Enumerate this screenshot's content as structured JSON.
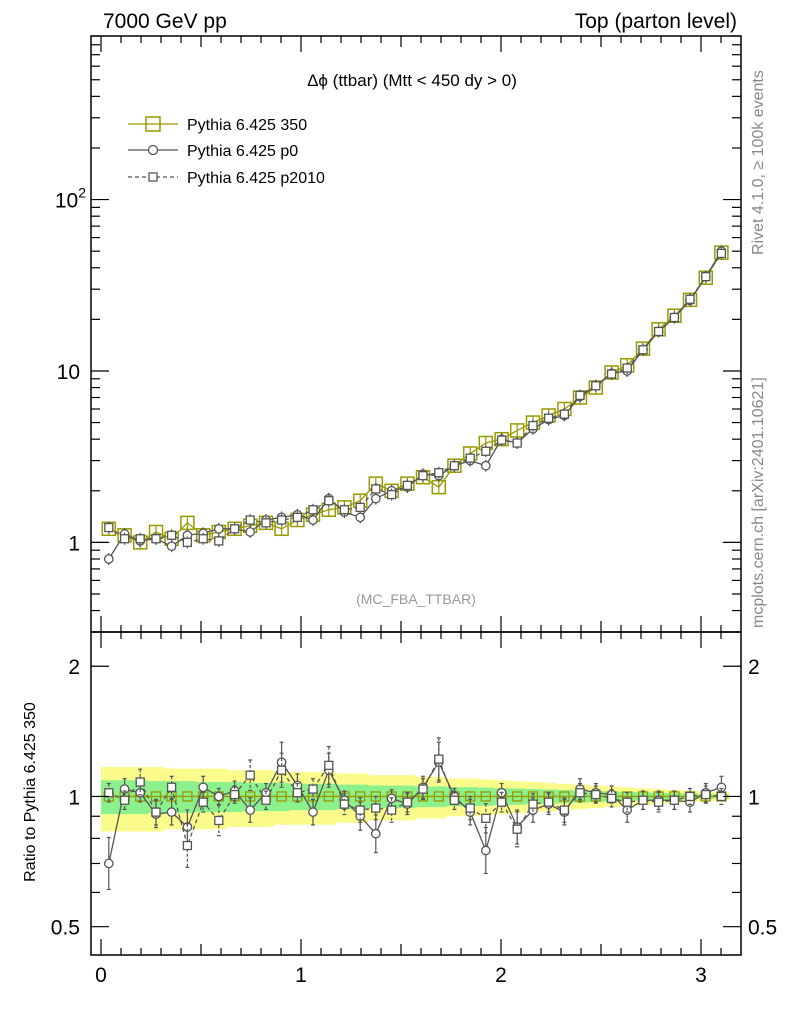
{
  "header": {
    "left": "7000 GeV pp",
    "right": "Top (parton level)"
  },
  "side_labels": {
    "rivet": "Rivet 4.1.0, ≥ 100k events",
    "mcplots": "mcplots.cern.ch [arXiv:2401.10621]"
  },
  "chart_data": [
    {
      "type": "line",
      "panel": "main",
      "title": "Δϕ (ttbar) (Mtt < 450 dy > 0)",
      "watermark": "(MC_FBA_TTBAR)",
      "xlabel": "",
      "ylabel": "",
      "xlim": [
        -0.05,
        3.2
      ],
      "ylim": [
        0.3,
        900
      ],
      "yscale": "log",
      "y_tick_labels": [
        "1",
        "10",
        "10²"
      ],
      "legend_position": "top-left",
      "x": [
        0.039,
        0.118,
        0.196,
        0.275,
        0.353,
        0.432,
        0.511,
        0.589,
        0.668,
        0.746,
        0.825,
        0.903,
        0.982,
        1.06,
        1.139,
        1.217,
        1.296,
        1.374,
        1.453,
        1.532,
        1.61,
        1.689,
        1.767,
        1.846,
        1.924,
        2.003,
        2.081,
        2.16,
        2.238,
        2.317,
        2.395,
        2.474,
        2.553,
        2.631,
        2.71,
        2.788,
        2.867,
        2.945,
        3.024,
        3.102
      ],
      "series": [
        {
          "name": "Pythia 6.425 350",
          "color": "#999900",
          "marker": "open-square",
          "line": "solid",
          "values": [
            1.2,
            1.1,
            1.0,
            1.15,
            1.05,
            1.3,
            1.1,
            1.15,
            1.2,
            1.25,
            1.3,
            1.2,
            1.35,
            1.45,
            1.55,
            1.6,
            1.75,
            2.2,
            2.0,
            2.2,
            2.4,
            2.1,
            2.8,
            3.3,
            3.8,
            4.0,
            4.5,
            5.0,
            5.5,
            6.0,
            7.0,
            8.0,
            9.8,
            10.8,
            13.5,
            17.5,
            21.0,
            26.0,
            35.0,
            49.0
          ]
        },
        {
          "name": "Pythia 6.425 p0",
          "color": "#555555",
          "marker": "open-circle",
          "line": "solid",
          "values": [
            0.8,
            1.12,
            1.02,
            1.05,
            0.95,
            1.1,
            1.13,
            1.2,
            1.2,
            1.15,
            1.35,
            1.4,
            1.45,
            1.35,
            1.8,
            1.5,
            1.4,
            1.8,
            2.0,
            2.1,
            2.5,
            2.45,
            2.8,
            3.0,
            2.8,
            4.0,
            3.8,
            4.6,
            5.2,
            5.5,
            7.1,
            8.2,
            9.7,
            10.0,
            13.3,
            17.0,
            20.5,
            25.8,
            35.5,
            50.0
          ]
        },
        {
          "name": "Pythia 6.425 p2010",
          "color": "#555555",
          "marker": "open-square-small",
          "line": "dashed",
          "values": [
            1.22,
            1.05,
            1.05,
            1.05,
            1.1,
            1.0,
            1.05,
            1.02,
            1.2,
            1.35,
            1.3,
            1.35,
            1.4,
            1.55,
            1.75,
            1.55,
            1.6,
            2.05,
            1.9,
            2.15,
            2.45,
            2.55,
            2.8,
            3.1,
            3.4,
            3.95,
            3.8,
            4.8,
            5.3,
            5.6,
            7.2,
            8.2,
            9.6,
            10.4,
            13.3,
            17.0,
            20.5,
            26.2,
            35.5,
            48.5
          ]
        }
      ]
    },
    {
      "type": "line",
      "panel": "ratio",
      "ylabel": "Ratio to Pythia 6.425 350",
      "xlabel": "",
      "xlim": [
        -0.05,
        3.2
      ],
      "ylim": [
        0.43,
        2.4
      ],
      "yscale": "log",
      "x_tick_labels": [
        "0",
        "1",
        "2",
        "3"
      ],
      "y_tick_labels": [
        "0.5",
        "1",
        "2"
      ],
      "reference": 1,
      "band_yellow_halfwidth": [
        0.17,
        0.17,
        0.17,
        0.17,
        0.16,
        0.16,
        0.16,
        0.16,
        0.15,
        0.15,
        0.15,
        0.14,
        0.14,
        0.14,
        0.14,
        0.13,
        0.13,
        0.12,
        0.12,
        0.12,
        0.11,
        0.11,
        0.1,
        0.1,
        0.095,
        0.09,
        0.085,
        0.08,
        0.075,
        0.07,
        0.065,
        0.06,
        0.055,
        0.05,
        0.045,
        0.04,
        0.035,
        0.03,
        0.025,
        0.02
      ],
      "band_green_halfwidth": [
        0.09,
        0.09,
        0.09,
        0.085,
        0.085,
        0.085,
        0.08,
        0.08,
        0.08,
        0.075,
        0.075,
        0.075,
        0.07,
        0.07,
        0.07,
        0.065,
        0.065,
        0.06,
        0.06,
        0.06,
        0.055,
        0.055,
        0.05,
        0.05,
        0.048,
        0.045,
        0.043,
        0.04,
        0.038,
        0.035,
        0.032,
        0.03,
        0.027,
        0.025,
        0.022,
        0.02,
        0.018,
        0.015,
        0.012,
        0.01
      ],
      "series": [
        {
          "name": "Pythia 6.425 p0",
          "color": "#555555",
          "marker": "open-circle",
          "line": "solid",
          "values": [
            0.7,
            1.04,
            1.02,
            0.91,
            0.92,
            0.85,
            1.05,
            1.0,
            1.03,
            0.93,
            1.02,
            1.2,
            1.06,
            0.92,
            1.15,
            0.98,
            0.9,
            0.82,
            0.99,
            0.96,
            1.05,
            1.2,
            1.0,
            0.92,
            0.75,
            1.02,
            0.85,
            0.93,
            0.96,
            0.92,
            1.04,
            1.02,
            1.01,
            0.93,
            0.98,
            0.98,
            0.98,
            0.97,
            1.02,
            1.05
          ]
        },
        {
          "name": "Pythia 6.425 p2010",
          "color": "#555555",
          "marker": "open-square-small",
          "line": "dashed",
          "values": [
            1.02,
            0.98,
            1.08,
            0.92,
            1.05,
            0.77,
            0.97,
            0.88,
            1.01,
            1.12,
            0.98,
            1.15,
            1.02,
            1.04,
            1.18,
            0.96,
            0.93,
            0.94,
            0.93,
            0.97,
            1.04,
            1.22,
            0.98,
            0.94,
            0.89,
            0.97,
            0.84,
            0.96,
            0.97,
            0.93,
            1.02,
            1.01,
            0.99,
            0.97,
            0.98,
            0.97,
            0.98,
            1.0,
            1.01,
            1.0
          ]
        }
      ]
    }
  ]
}
